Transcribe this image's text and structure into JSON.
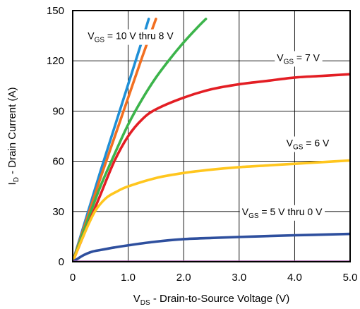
{
  "chart_data": {
    "type": "line",
    "xlabel": {
      "main": "V",
      "sub": "DS",
      "rest": " - Drain-to-Source Voltage (V)"
    },
    "ylabel": {
      "main": "I",
      "sub": "D",
      "rest": " - Drain Current (A)"
    },
    "xlim": [
      0,
      5
    ],
    "ylim": [
      0,
      150
    ],
    "x_ticks": [
      "0",
      "1.0",
      "2.0",
      "3.0",
      "4.0",
      "5.0"
    ],
    "y_ticks": [
      "0",
      "30",
      "60",
      "90",
      "120",
      "150"
    ],
    "grid": true,
    "series": [
      {
        "color": "#1f8fd6",
        "x": [
          0,
          0.25,
          0.5,
          0.75,
          1.0,
          1.25,
          1.37
        ],
        "y": [
          0,
          27,
          54,
          80,
          106,
          132,
          145
        ]
      },
      {
        "color": "#f26f21",
        "x": [
          0,
          0.25,
          0.5,
          0.75,
          1.0,
          1.25,
          1.5
        ],
        "y": [
          0,
          25,
          50,
          74,
          98,
          122,
          145
        ]
      },
      {
        "color": "#3cb44b",
        "x": [
          0,
          0.25,
          0.5,
          0.75,
          1.0,
          1.25,
          1.5,
          1.75,
          2.0,
          2.25,
          2.4
        ],
        "y": [
          0,
          23,
          45,
          64,
          82,
          97,
          110,
          121,
          131,
          140,
          145
        ]
      },
      {
        "color": "#e31e24",
        "x": [
          0,
          0.25,
          0.5,
          0.75,
          1.0,
          1.25,
          1.5,
          2.0,
          2.5,
          3.0,
          3.5,
          4.0,
          4.5,
          5.0
        ],
        "y": [
          0,
          20,
          40,
          60,
          75,
          85,
          91,
          98,
          103,
          106,
          108,
          110,
          111,
          112
        ]
      },
      {
        "color": "#ffc61e",
        "x": [
          0,
          0.2,
          0.4,
          0.6,
          0.8,
          1.0,
          1.5,
          2.0,
          2.5,
          3.0,
          3.5,
          4.0,
          4.5,
          5.0
        ],
        "y": [
          0,
          16,
          30,
          38,
          42,
          45,
          50,
          53,
          55,
          56.5,
          57.5,
          58.5,
          59.5,
          60.5
        ]
      },
      {
        "color": "#2e4f9e",
        "x": [
          0,
          0.1,
          0.2,
          0.35,
          0.5,
          0.75,
          1.0,
          1.5,
          2.0,
          2.5,
          3.0,
          3.5,
          4.0,
          4.5,
          5.0
        ],
        "y": [
          0,
          2,
          4,
          6,
          7,
          8.5,
          9.8,
          12,
          13.5,
          14.2,
          14.8,
          15.3,
          15.8,
          16.2,
          16.6
        ]
      },
      {
        "color": "#a455a6",
        "x": [
          0,
          5.0
        ],
        "y": [
          0,
          0
        ]
      }
    ],
    "annotations": [
      {
        "main": "V",
        "sub": "GS",
        "rest": " = 10 V thru 8 V",
        "x": 0.27,
        "y": 135
      },
      {
        "main": "V",
        "sub": "GS",
        "rest": " = 7 V",
        "x": 3.68,
        "y": 122
      },
      {
        "main": "V",
        "sub": "GS",
        "rest": " = 6 V",
        "x": 3.85,
        "y": 71
      },
      {
        "main": "V",
        "sub": "GS",
        "rest": " = 5 V thru 0 V",
        "x": 3.05,
        "y": 30
      }
    ]
  }
}
